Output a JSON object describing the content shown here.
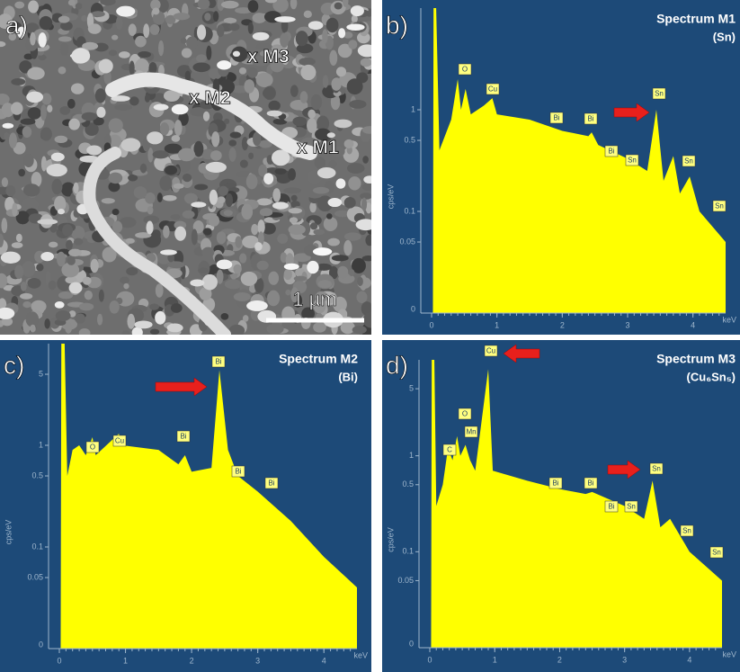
{
  "panels": [
    {
      "label": "a)",
      "markers": [
        "x M3",
        "x M2",
        "x M1"
      ],
      "scale_bar": "1 µm"
    },
    {
      "label": "b)",
      "chart_data": {
        "type": "area",
        "title": "Spectrum M1",
        "subtitle": "(Sn)",
        "x_label": "keV",
        "y_label": "cps/eV",
        "y_bottom_label": "0",
        "log_y": true,
        "color": "#ffff00",
        "xlim": [
          0,
          4.5
        ],
        "ylim": [
          0.01,
          10
        ],
        "xticks": [
          0,
          1,
          2,
          3,
          4
        ],
        "yticks": [
          0.05,
          0.1,
          0.5,
          1
        ],
        "x": [
          0.02,
          0.03,
          0.07,
          0.12,
          0.3,
          0.4,
          0.45,
          0.52,
          0.6,
          0.8,
          0.93,
          1.0,
          1.5,
          2.0,
          2.4,
          2.45,
          2.55,
          3.0,
          3.3,
          3.44,
          3.55,
          3.7,
          3.8,
          3.95,
          4.1,
          4.5
        ],
        "values": [
          0.01,
          10,
          10,
          0.4,
          0.8,
          2,
          1,
          1.6,
          0.9,
          1.1,
          1.3,
          0.9,
          0.8,
          0.62,
          0.55,
          0.6,
          0.45,
          0.33,
          0.25,
          1.0,
          0.2,
          0.35,
          0.15,
          0.22,
          0.1,
          0.05
        ],
        "peak_labels": [
          "O",
          "Cu",
          "Bi",
          "Bi",
          "Bi",
          "Sn",
          "Sn",
          "Sn",
          "Sn"
        ]
      }
    },
    {
      "label": "c)",
      "chart_data": {
        "type": "area",
        "title": "Spectrum M2",
        "subtitle": "(Bi)",
        "x_label": "keV",
        "y_label": "cps/eV",
        "y_bottom_label": "0",
        "log_y": true,
        "color": "#ffff00",
        "xlim": [
          0,
          4.5
        ],
        "ylim": [
          0.01,
          10
        ],
        "xticks": [
          0,
          1,
          2,
          3,
          4
        ],
        "yticks": [
          0.05,
          0.1,
          0.5,
          1,
          5
        ],
        "x": [
          0.02,
          0.03,
          0.08,
          0.12,
          0.2,
          0.3,
          0.4,
          0.5,
          0.55,
          0.9,
          0.95,
          1.5,
          1.8,
          1.9,
          2.0,
          2.3,
          2.42,
          2.55,
          2.7,
          3.0,
          3.5,
          4.0,
          4.5
        ],
        "values": [
          0.01,
          10,
          10,
          0.5,
          0.9,
          1.0,
          0.8,
          1.2,
          0.8,
          1.3,
          1.0,
          0.9,
          0.65,
          0.8,
          0.55,
          0.6,
          5.5,
          0.9,
          0.5,
          0.35,
          0.18,
          0.08,
          0.04
        ],
        "peak_labels": [
          "O",
          "Cu",
          "Bi",
          "Bi",
          "Bi",
          "Bi"
        ]
      }
    },
    {
      "label": "d)",
      "chart_data": {
        "type": "area",
        "title": "Spectrum M3",
        "subtitle": "(Cu₆Sn₅)",
        "x_label": "keV",
        "y_label": "cps/eV",
        "y_bottom_label": "0",
        "log_y": true,
        "color": "#ffff00",
        "xlim": [
          0,
          4.5
        ],
        "ylim": [
          0.01,
          10
        ],
        "xticks": [
          0,
          1,
          2,
          3,
          4
        ],
        "yticks": [
          0.05,
          0.1,
          0.5,
          1,
          5
        ],
        "x": [
          0.02,
          0.03,
          0.07,
          0.1,
          0.2,
          0.28,
          0.35,
          0.42,
          0.47,
          0.55,
          0.62,
          0.7,
          0.9,
          0.97,
          1.5,
          2.0,
          2.4,
          2.5,
          3.0,
          3.3,
          3.43,
          3.55,
          3.7,
          4.0,
          4.5
        ],
        "values": [
          0.01,
          10,
          10,
          0.3,
          0.5,
          1.2,
          0.9,
          1.6,
          1.0,
          1.3,
          0.9,
          0.7,
          8,
          0.7,
          0.55,
          0.45,
          0.4,
          0.42,
          0.3,
          0.22,
          0.55,
          0.18,
          0.22,
          0.1,
          0.05
        ],
        "peak_labels": [
          "C",
          "O",
          "Mn",
          "Cu",
          "Bi",
          "Bi",
          "Bi",
          "Sn",
          "Sn",
          "Sn",
          "Sn"
        ]
      }
    }
  ]
}
